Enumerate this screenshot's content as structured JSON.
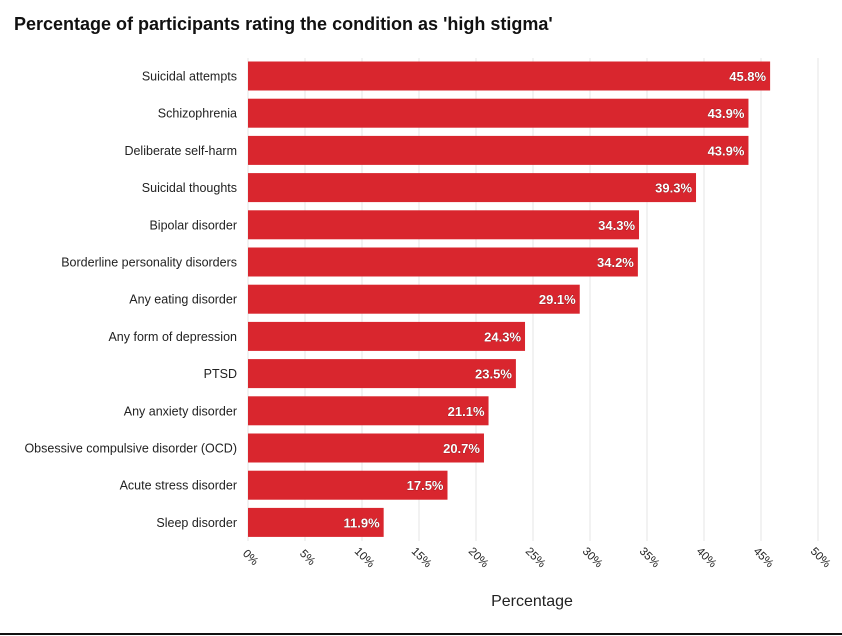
{
  "chart_data": {
    "type": "bar",
    "orientation": "horizontal",
    "title": "Percentage of participants rating the condition as 'high stigma'",
    "xlabel": "Percentage",
    "ylabel": "",
    "xlim": [
      0,
      50
    ],
    "ticks": [
      "0%",
      "5%",
      "10%",
      "15%",
      "20%",
      "25%",
      "30%",
      "35%",
      "40%",
      "45%",
      "50%"
    ],
    "tick_values": [
      0,
      5,
      10,
      15,
      20,
      25,
      30,
      35,
      40,
      45,
      50
    ],
    "grid": true,
    "bar_color": "#d9262e",
    "categories": [
      "Suicidal attempts",
      "Schizophrenia",
      "Deliberate self-harm",
      "Suicidal thoughts",
      "Bipolar disorder",
      "Borderline personality disorders",
      "Any eating disorder",
      "Any form of depression",
      "PTSD",
      "Any anxiety disorder",
      "Obsessive compulsive disorder (OCD)",
      "Acute stress disorder",
      "Sleep disorder"
    ],
    "values": [
      45.8,
      43.9,
      43.9,
      39.3,
      34.3,
      34.2,
      29.1,
      24.3,
      23.5,
      21.1,
      20.7,
      17.5,
      11.9
    ],
    "data_labels": [
      "45.8%",
      "43.9%",
      "43.9%",
      "39.3%",
      "34.3%",
      "34.2%",
      "29.1%",
      "24.3%",
      "23.5%",
      "21.1%",
      "20.7%",
      "17.5%",
      "11.9%"
    ]
  }
}
